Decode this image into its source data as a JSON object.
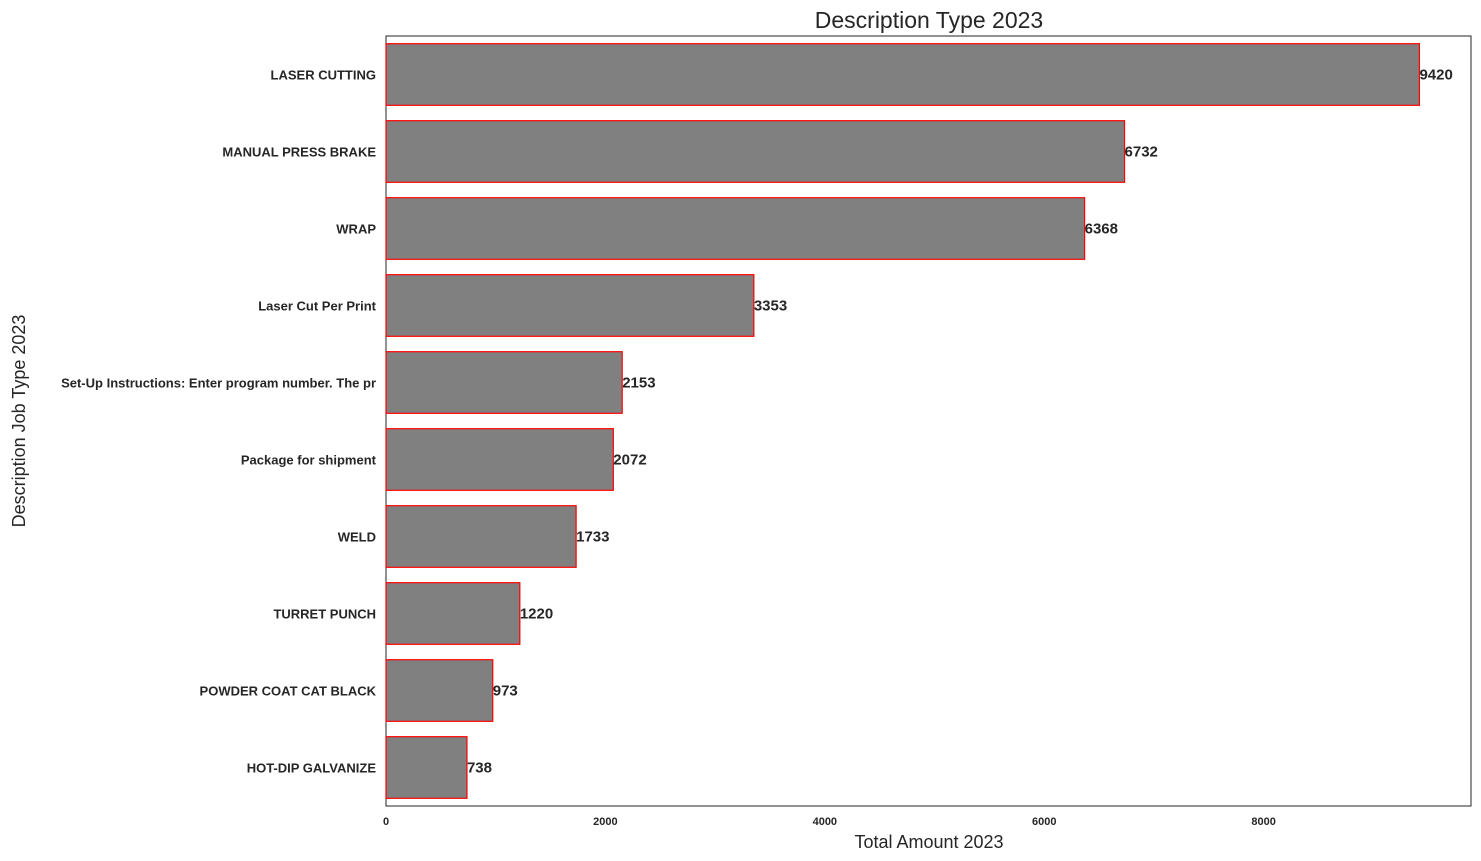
{
  "chart_data": {
    "type": "bar",
    "orientation": "horizontal",
    "title": "Description Type 2023",
    "xlabel": "Total Amount 2023",
    "ylabel": "Description Job Type 2023",
    "categories": [
      "LASER CUTTING",
      "MANUAL PRESS BRAKE",
      "WRAP",
      "Laser Cut Per Print",
      "Set-Up Instructions:  Enter program number. The pr",
      "Package for shipment",
      "WELD",
      "TURRET PUNCH",
      "POWDER COAT CAT BLACK",
      "HOT-DIP GALVANIZE"
    ],
    "values": [
      9420,
      6732,
      6368,
      3353,
      2153,
      2072,
      1733,
      1220,
      973,
      738
    ],
    "xlim": [
      0,
      9890
    ],
    "xticks": [
      0,
      2000,
      4000,
      6000,
      8000
    ],
    "grid": false,
    "bar_color": "#808080",
    "bar_edge_color": "#ff0000"
  }
}
